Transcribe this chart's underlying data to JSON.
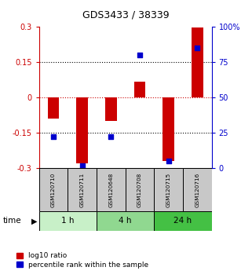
{
  "title": "GDS3433 / 38339",
  "samples": [
    "GSM120710",
    "GSM120711",
    "GSM120648",
    "GSM120708",
    "GSM120715",
    "GSM120716"
  ],
  "log10_ratio": [
    -0.09,
    -0.28,
    -0.1,
    0.065,
    -0.27,
    0.295
  ],
  "percentile_rank": [
    22,
    2,
    22,
    80,
    5,
    85
  ],
  "groups": [
    {
      "label": "1 h",
      "indices": [
        0,
        1
      ],
      "color": "#c8f0c8"
    },
    {
      "label": "4 h",
      "indices": [
        2,
        3
      ],
      "color": "#90d890"
    },
    {
      "label": "24 h",
      "indices": [
        4,
        5
      ],
      "color": "#44c044"
    }
  ],
  "ylim_left": [
    -0.3,
    0.3
  ],
  "ylim_right": [
    0,
    100
  ],
  "yticks_left": [
    -0.3,
    -0.15,
    0,
    0.15,
    0.3
  ],
  "yticks_right": [
    0,
    25,
    50,
    75,
    100
  ],
  "ytick_labels_left": [
    "-0.3",
    "-0.15",
    "0",
    "0.15",
    "0.3"
  ],
  "ytick_labels_right": [
    "0",
    "25",
    "50",
    "75",
    "100%"
  ],
  "bar_color_red": "#cc0000",
  "bar_color_blue": "#0000cc",
  "bar_width": 0.4,
  "dot_size": 25,
  "hline_zero_color": "#cc0000",
  "hline_dotted_color": "#000000",
  "legend_red_label": "log10 ratio",
  "legend_blue_label": "percentile rank within the sample",
  "time_label": "time",
  "left_color": "#cc0000",
  "right_color": "#0000cc",
  "sample_box_color": "#c8c8c8",
  "fig_bg": "#ffffff"
}
